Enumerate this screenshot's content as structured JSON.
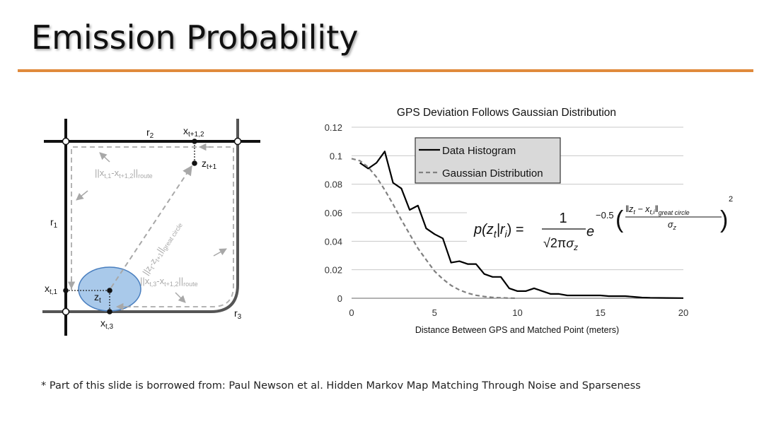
{
  "slide": {
    "title": "Emission Probability",
    "footnote": "* Part of this slide is borrowed from: Paul Newson et al. Hidden Markov Map Matching Through Noise and Sparseness"
  },
  "diagram": {
    "r1": "r",
    "r1_sub": "1",
    "r2": "r",
    "r2_sub": "2",
    "r3": "r",
    "r3_sub": "3",
    "x_t1_2": "x",
    "x_t1_2_sub": "t+1,2",
    "z_t1": "z",
    "z_t1_sub": "t+1",
    "zt": "z",
    "zt_sub": "t",
    "xt1": "x",
    "xt1_sub": "t,1",
    "xt3": "x",
    "xt3_sub": "t,3",
    "route1_a": "||x",
    "route1_b": "t,1",
    "route1_c": "-x",
    "route1_d": "t+1,2",
    "route1_e": "||",
    "route1_f": "route",
    "gc_a": "||z",
    "gc_b": "t",
    "gc_c": "-z",
    "gc_d": "t+1",
    "gc_e": "||",
    "gc_f": "great circle",
    "route2_a": "||x",
    "route2_b": "t,3",
    "route2_c": "-x",
    "route2_d": "t+1,2",
    "route2_e": "||",
    "route2_f": "route"
  },
  "formula": {
    "lhs": "p(z",
    "lhs_sub": "t",
    "lhs_mid": "|r",
    "lhs_sub2": "i",
    "lhs_end": ") =",
    "num": "1",
    "den_sqrt": "√2π",
    "den_sigma": "σ",
    "den_sub": "z",
    "e": "e",
    "coef": "−0.5",
    "inner_num": "‖z",
    "inner_num_sub": "t",
    "inner_num_mid": " − x",
    "inner_num_sub2": "t,i",
    "inner_num_end": "‖",
    "inner_num_sub3": "great  circle",
    "inner_den": "σ",
    "inner_den_sub": "z",
    "power": "2"
  },
  "chart_data": {
    "type": "line",
    "title": "GPS Deviation Follows Gaussian Distribution",
    "xlabel": "Distance Between GPS and Matched Point (meters)",
    "ylabel": "",
    "xlim": [
      0,
      20
    ],
    "ylim": [
      0,
      0.12
    ],
    "xticks": [
      "0",
      "5",
      "10",
      "15",
      "20"
    ],
    "yticks": [
      "0",
      "0.02",
      "0.04",
      "0.06",
      "0.08",
      "0.1",
      "0.12"
    ],
    "grid": true,
    "legend_position": "top-center",
    "series": [
      {
        "name": "Data Histogram",
        "color": "#000000",
        "dash": "solid",
        "x": [
          0.5,
          1,
          1.5,
          2,
          2.5,
          3,
          3.5,
          4,
          4.5,
          5,
          5.5,
          6,
          6.5,
          7,
          7.5,
          8,
          8.5,
          9,
          9.5,
          10,
          10.5,
          11,
          11.5,
          12,
          12.5,
          13,
          14,
          15,
          15.5,
          16,
          16.5,
          17,
          17.5,
          18,
          19,
          20
        ],
        "y": [
          0.095,
          0.091,
          0.095,
          0.103,
          0.081,
          0.077,
          0.062,
          0.065,
          0.049,
          0.045,
          0.042,
          0.025,
          0.026,
          0.024,
          0.024,
          0.017,
          0.015,
          0.015,
          0.007,
          0.005,
          0.005,
          0.007,
          0.005,
          0.003,
          0.003,
          0.002,
          0.002,
          0.002,
          0.0015,
          0.0015,
          0.0015,
          0.001,
          0.0005,
          0.0003,
          0.0002,
          0.0001
        ]
      },
      {
        "name": "Gaussian Distribution",
        "color": "#808080",
        "dash": "dashed",
        "x": [
          0,
          0.5,
          1,
          1.5,
          2,
          2.5,
          3,
          3.5,
          4,
          4.5,
          5,
          5.5,
          6,
          6.5,
          7,
          7.5,
          8,
          8.5,
          9,
          9.5,
          10
        ],
        "y": [
          0.098,
          0.0965,
          0.092,
          0.085,
          0.076,
          0.066,
          0.055,
          0.045,
          0.035,
          0.027,
          0.019,
          0.0135,
          0.009,
          0.0058,
          0.0036,
          0.0021,
          0.0012,
          0.0006,
          0.0003,
          0.0001,
          0.0
        ]
      }
    ]
  },
  "colors": {
    "accent_rule": "#e08a3c",
    "ellipse_fill": "#a9c9ea",
    "ellipse_stroke": "#4a7fbf",
    "route_dash": "#b4b4b4"
  }
}
